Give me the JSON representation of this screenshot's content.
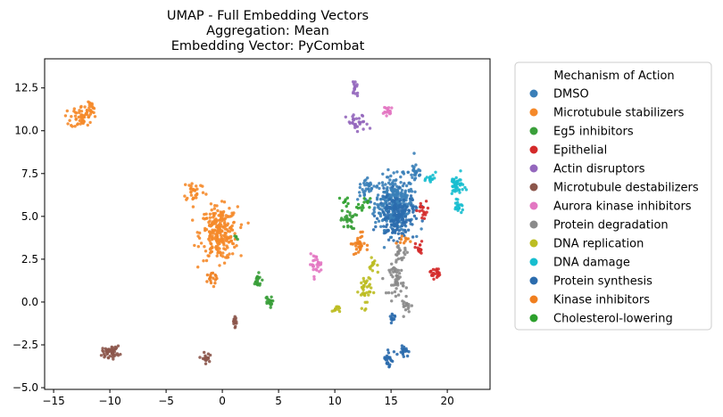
{
  "chart_data": {
    "type": "scatter",
    "title_lines": [
      "UMAP - Full Embedding Vectors",
      "Aggregation: Mean",
      "Embedding Vector: PyCombat"
    ],
    "xlabel": "",
    "ylabel": "",
    "xlim": [
      -15.8,
      23.8
    ],
    "ylim": [
      -5.1,
      14.2
    ],
    "x_ticks": [
      -15,
      -10,
      -5,
      0,
      5,
      10,
      15,
      20
    ],
    "y_ticks": [
      -5.0,
      -2.5,
      0.0,
      2.5,
      5.0,
      7.5,
      10.0,
      12.5
    ],
    "y_tick_labels": [
      "−5.0",
      "−2.5",
      "0.0",
      "2.5",
      "5.0",
      "7.5",
      "10.0",
      "12.5"
    ],
    "x_tick_labels": [
      "−15",
      "−10",
      "−5",
      "0",
      "5",
      "10",
      "15",
      "20"
    ],
    "grid": false,
    "legend": {
      "title": "Mechanism of Action",
      "placement": "outside-right"
    },
    "series": [
      {
        "name": "DMSO",
        "color": "#3a7fb8",
        "clusters": [
          [
            15.3,
            5.8,
            1.6,
            1.4,
            320
          ],
          [
            12.8,
            6.6,
            0.7,
            0.6,
            30
          ],
          [
            17.2,
            7.6,
            0.6,
            0.6,
            25
          ]
        ]
      },
      {
        "name": "Microtubule stabilizers",
        "color": "#f5892a",
        "clusters": [
          [
            -0.3,
            4.0,
            1.5,
            1.4,
            260
          ],
          [
            -2.5,
            6.5,
            0.9,
            0.6,
            30
          ],
          [
            -12.5,
            10.8,
            0.9,
            0.6,
            55
          ],
          [
            -11.8,
            11.4,
            0.4,
            0.4,
            20
          ]
        ]
      },
      {
        "name": "Eg5 inhibitors",
        "color": "#3a9f3a",
        "clusters": [
          [
            3.1,
            1.2,
            0.4,
            0.4,
            20
          ],
          [
            4.1,
            0.0,
            0.3,
            0.3,
            18
          ],
          [
            11.2,
            4.8,
            0.6,
            0.5,
            30
          ],
          [
            1.2,
            3.8,
            0.2,
            0.2,
            4
          ]
        ]
      },
      {
        "name": "Epithelial",
        "color": "#d42a2a",
        "clusters": [
          [
            18.9,
            1.7,
            0.4,
            0.3,
            22
          ],
          [
            17.5,
            3.1,
            0.3,
            0.4,
            18
          ],
          [
            17.9,
            5.3,
            0.5,
            0.5,
            18
          ]
        ]
      },
      {
        "name": "Actin disruptors",
        "color": "#9467bd",
        "clusters": [
          [
            12.0,
            10.4,
            0.9,
            0.5,
            30
          ],
          [
            11.8,
            12.5,
            0.3,
            0.6,
            16
          ]
        ]
      },
      {
        "name": "Microtubule destabilizers",
        "color": "#8c564b",
        "clusters": [
          [
            -9.9,
            -2.9,
            0.7,
            0.3,
            50
          ],
          [
            -1.5,
            -3.3,
            0.3,
            0.3,
            20
          ],
          [
            1.1,
            -1.1,
            0.3,
            0.3,
            16
          ]
        ]
      },
      {
        "name": "Aurora kinase inhibitors",
        "color": "#e377c2",
        "clusters": [
          [
            8.3,
            2.2,
            0.5,
            0.5,
            28
          ],
          [
            14.8,
            11.1,
            0.4,
            0.3,
            20
          ]
        ]
      },
      {
        "name": "Protein degradation",
        "color": "#8a8a8a",
        "clusters": [
          [
            15.5,
            1.3,
            0.6,
            0.8,
            50
          ],
          [
            15.8,
            2.8,
            0.7,
            0.4,
            22
          ],
          [
            16.4,
            -0.2,
            0.4,
            0.4,
            16
          ]
        ]
      },
      {
        "name": "DNA replication",
        "color": "#bcbd22",
        "clusters": [
          [
            12.7,
            0.7,
            0.5,
            0.9,
            40
          ],
          [
            10.1,
            -0.4,
            0.3,
            0.2,
            14
          ],
          [
            13.5,
            2.1,
            0.4,
            0.4,
            14
          ]
        ]
      },
      {
        "name": "DNA damage",
        "color": "#17becf",
        "clusters": [
          [
            20.8,
            6.8,
            0.6,
            0.6,
            45
          ],
          [
            21.0,
            5.5,
            0.4,
            0.2,
            18
          ],
          [
            18.6,
            7.2,
            0.4,
            0.3,
            14
          ]
        ]
      },
      {
        "name": "Protein synthesis",
        "color": "#2b6cad",
        "clusters": [
          [
            15.5,
            5.0,
            1.4,
            1.2,
            160
          ],
          [
            14.8,
            -3.3,
            0.4,
            0.6,
            24
          ],
          [
            16.1,
            -2.8,
            0.4,
            0.3,
            18
          ],
          [
            15.0,
            -1.2,
            0.3,
            0.6,
            12
          ]
        ]
      },
      {
        "name": "Kinase inhibitors",
        "color": "#f07f1f",
        "clusters": [
          [
            12.1,
            3.4,
            0.5,
            0.6,
            30
          ],
          [
            -1.0,
            1.3,
            0.5,
            0.4,
            16
          ],
          [
            16.0,
            3.6,
            0.5,
            0.3,
            10
          ]
        ]
      },
      {
        "name": "Cholesterol-lowering",
        "color": "#2ca02c",
        "clusters": [
          [
            12.6,
            5.6,
            0.5,
            0.4,
            14
          ],
          [
            11.0,
            5.8,
            0.4,
            0.3,
            8
          ]
        ]
      }
    ]
  }
}
